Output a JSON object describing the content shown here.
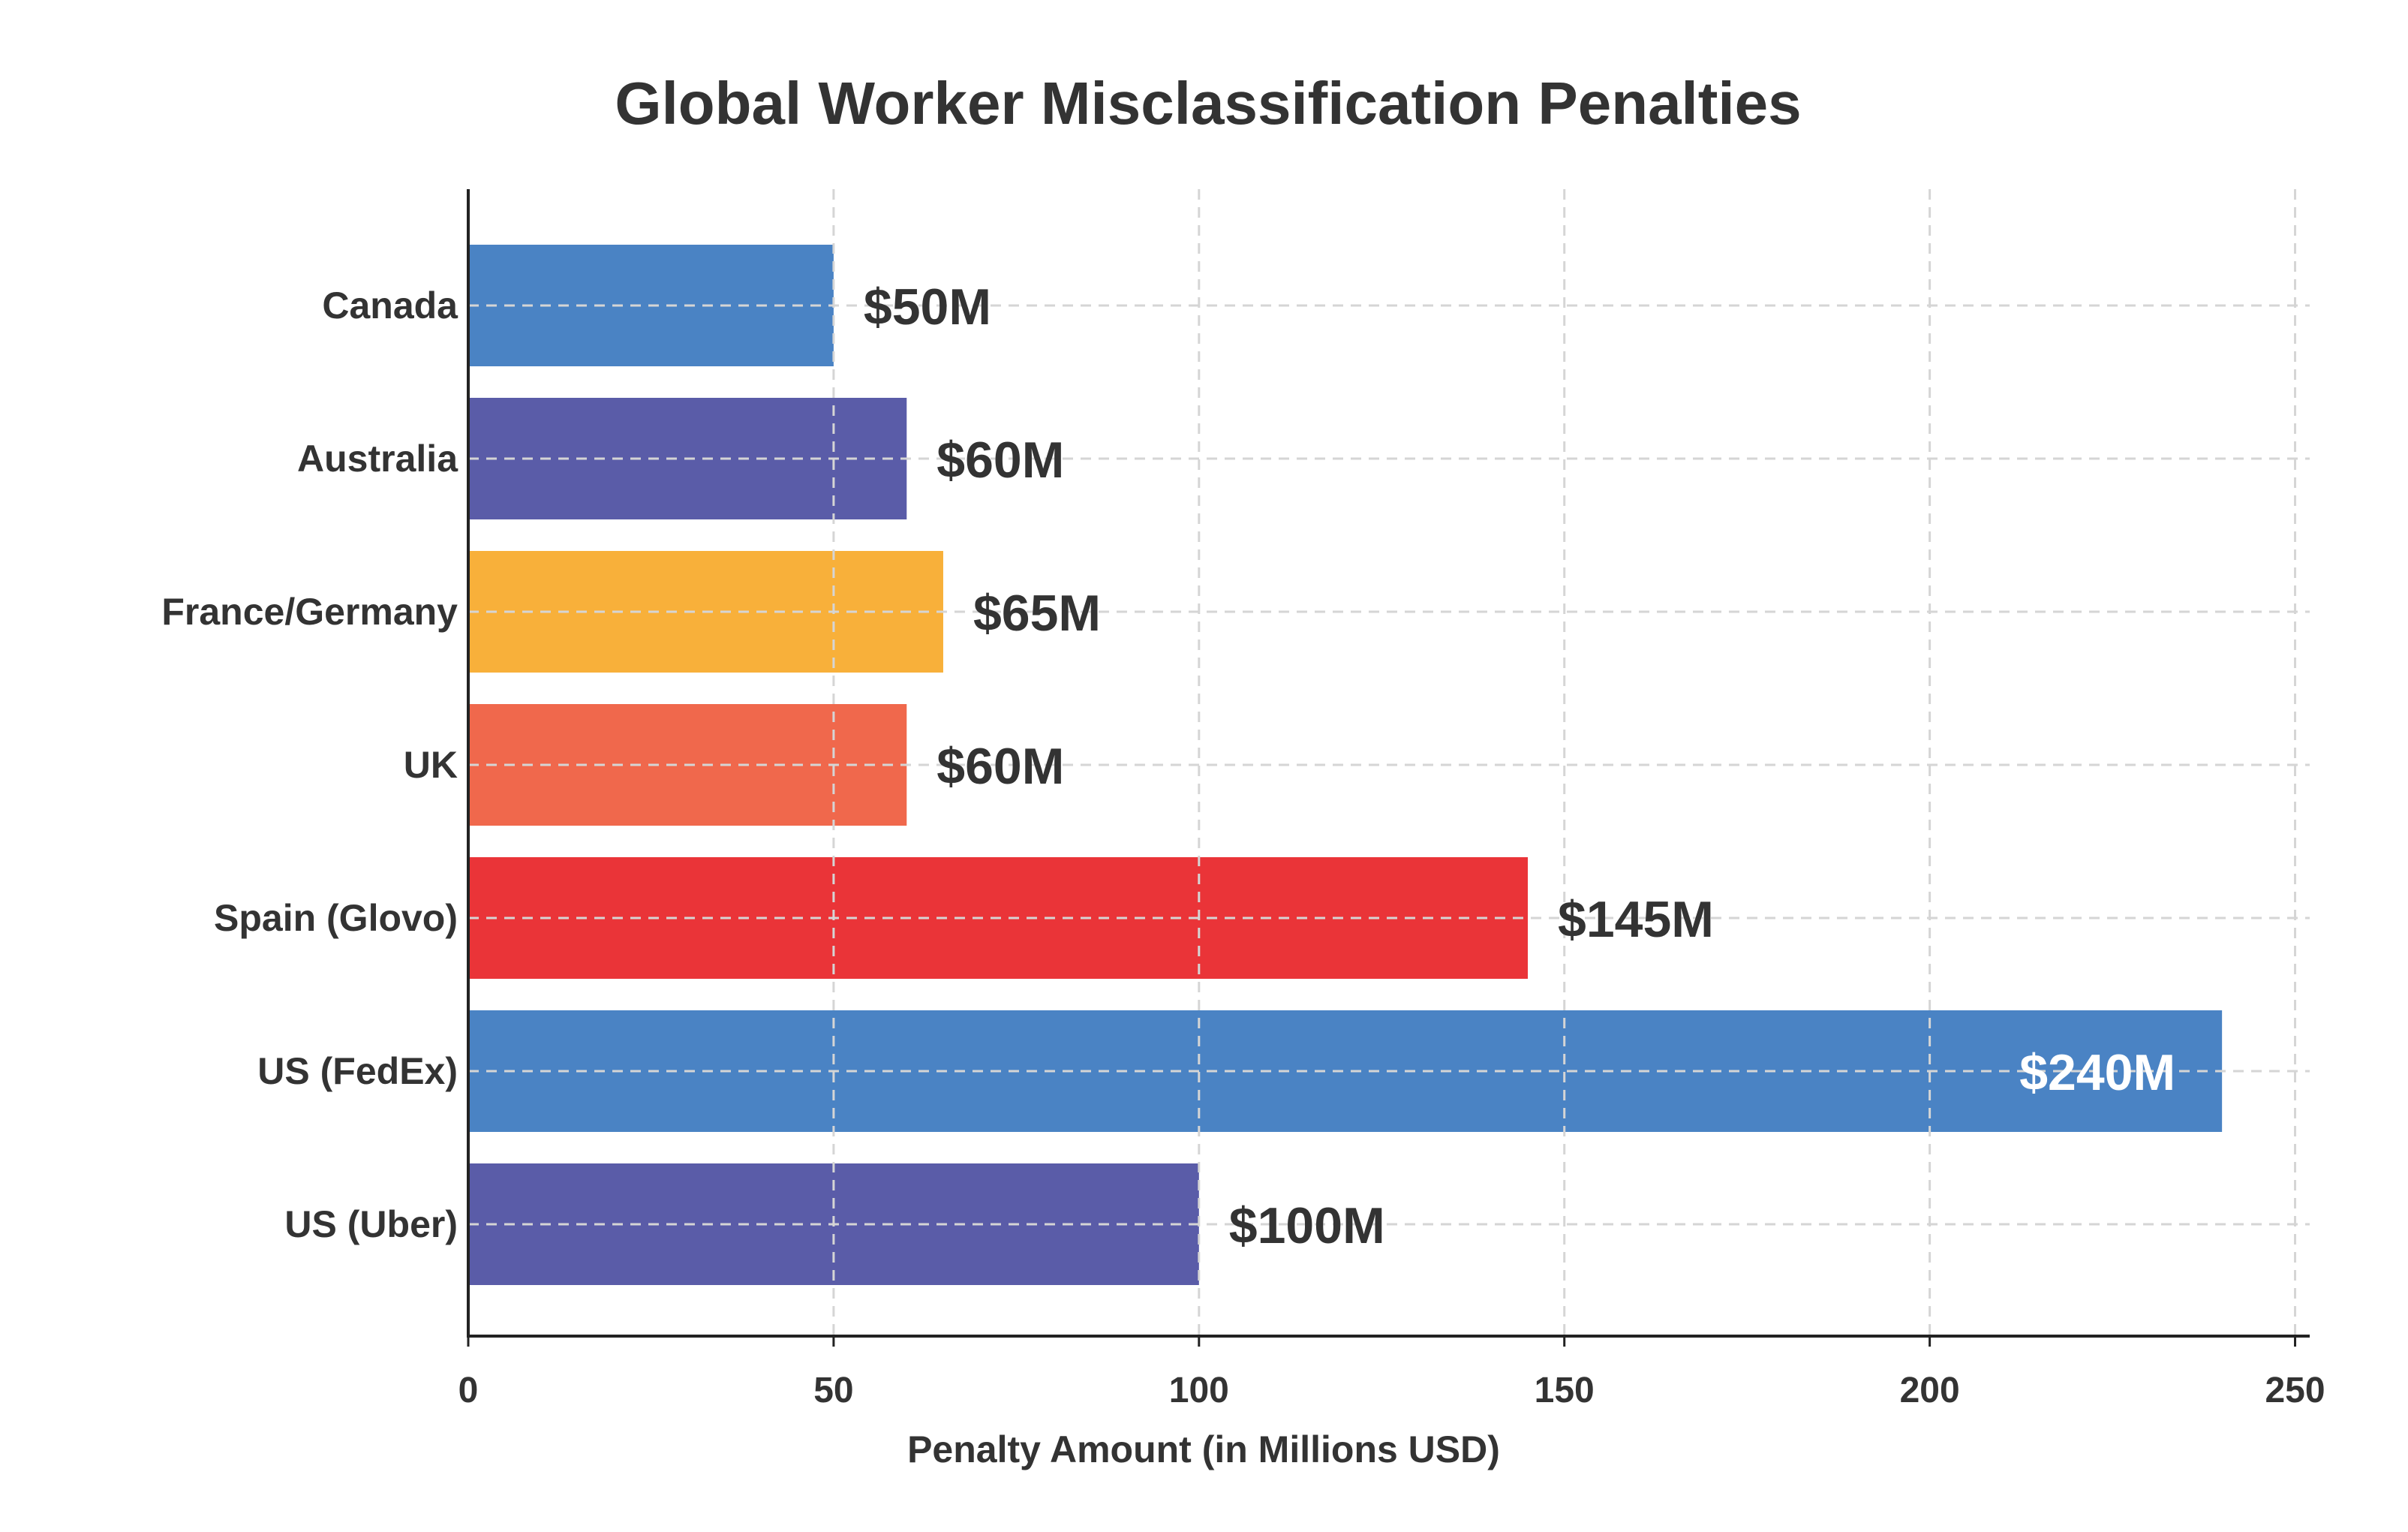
{
  "chart_data": {
    "type": "bar",
    "orientation": "horizontal",
    "title": "Global Worker Misclassification Penalties",
    "xlabel": "Penalty Amount (in Millions USD)",
    "ylabel": "",
    "xlim": [
      0,
      252
    ],
    "xticks": [
      0,
      50,
      100,
      150,
      200,
      250
    ],
    "xtick_labels": [
      "0",
      "50",
      "100",
      "150",
      "200",
      "250"
    ],
    "grid": true,
    "categories": [
      "Canada",
      "Australia",
      "France/Germany",
      "UK",
      "Spain (Glovo)",
      "US (FedEx)",
      "US (Uber)"
    ],
    "values": [
      50,
      60,
      65,
      60,
      145,
      240,
      100
    ],
    "data_labels": [
      "$50M",
      "$60M",
      "$65M",
      "$60M",
      "$145M",
      "$240M",
      "$100M"
    ],
    "colors": [
      "#4a83c4",
      "#5a5ca8",
      "#f8b03a",
      "#f0684c",
      "#ea3438",
      "#4a83c4",
      "#5a5ca8"
    ],
    "label_inside": [
      false,
      false,
      false,
      false,
      false,
      true,
      false
    ],
    "text_color": "#333333",
    "inside_label_color": "#ffffff",
    "grid_color": "#d5d5d5",
    "axis_color": "#222222"
  }
}
